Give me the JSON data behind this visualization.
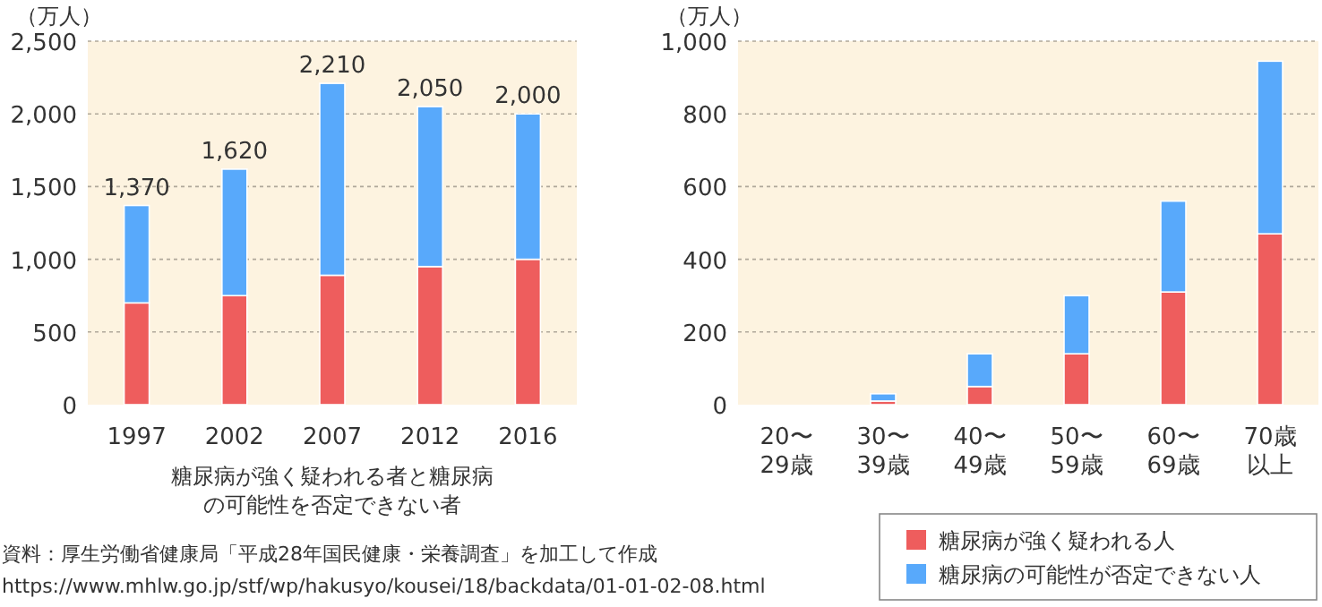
{
  "chart_data": [
    {
      "type": "bar",
      "stacked": true,
      "ylabel": "（万人）",
      "xlabel": "糖尿病が強く疑われる者と糖尿病の可能性を否定できない者",
      "categories": [
        "1997",
        "2002",
        "2007",
        "2012",
        "2016"
      ],
      "series": [
        {
          "color": "#ee5d5d",
          "values": [
            700,
            750,
            890,
            950,
            1000
          ]
        },
        {
          "color": "#58a9fb",
          "values": [
            670,
            870,
            1320,
            1100,
            1000
          ]
        }
      ],
      "totals": [
        "1,370",
        "1,620",
        "2,210",
        "2,050",
        "2,000"
      ],
      "ylim": [
        0,
        2500
      ],
      "yticks": [
        0,
        500,
        {
          "value": 1000,
          "label": "1,000"
        },
        {
          "value": 1500,
          "label": "1,500"
        },
        {
          "value": 2000,
          "label": "2,000"
        },
        {
          "value": 2500,
          "label": "2,500"
        }
      ],
      "grid": "y",
      "annotations": [
        "資料：厚生労働省健康局「平成28年国民健康・栄養調査」を加工して作成",
        "https://www.mhlw.go.jp/stf/wp/hakusyo/kousei/18/backdata/01-01-02-08.html"
      ]
    },
    {
      "type": "bar",
      "stacked": true,
      "ylabel": "（万人）",
      "categories": [
        "20〜29歳",
        "30〜39歳",
        "40〜49歳",
        "50〜59歳",
        "60〜69歳",
        "70歳以上"
      ],
      "series": [
        {
          "name": "糖尿病が強く疑われる人",
          "color": "#ee5d5d",
          "values": [
            0,
            10,
            50,
            140,
            310,
            470
          ]
        },
        {
          "name": "糖尿病の可能性が否定できない人",
          "color": "#58a9fb",
          "values": [
            0,
            20,
            90,
            160,
            250,
            475
          ]
        }
      ],
      "ylim": [
        0,
        1000
      ],
      "yticks": [
        0,
        200,
        400,
        600,
        800,
        {
          "value": 1000,
          "label": "1,000"
        }
      ],
      "grid": "y",
      "legend": "bottom right"
    }
  ]
}
